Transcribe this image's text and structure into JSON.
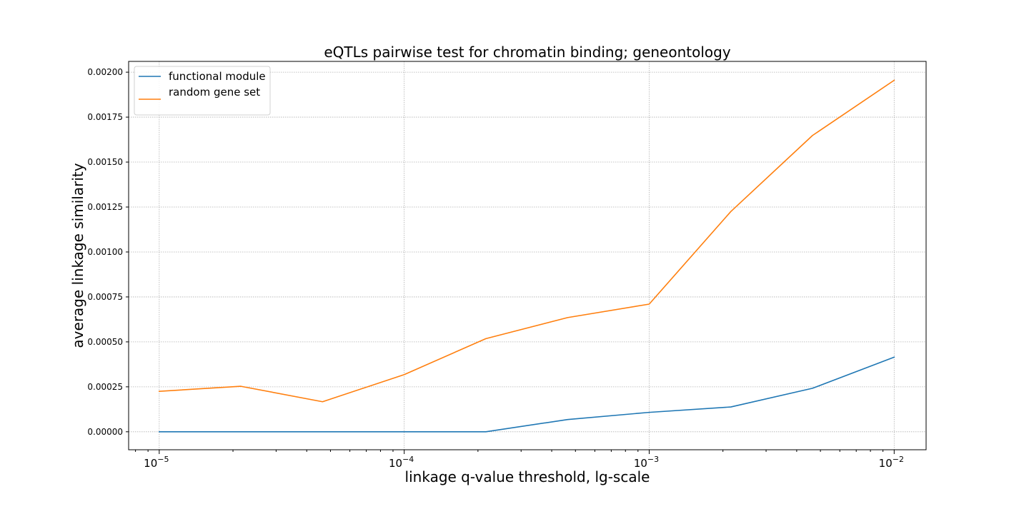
{
  "chart_data": {
    "type": "line",
    "title": "eQTLs pairwise test for chromatin binding; geneontology",
    "xlabel": "linkage q-value threshold, lg-scale",
    "ylabel": "average linkage similarity",
    "x_scale": "log10",
    "xlim": [
      7.5e-06,
      0.0135
    ],
    "ylim": [
      -0.0001,
      0.00206
    ],
    "grid": true,
    "legend_position": "top-left",
    "x_ticks": [
      {
        "value": 1e-05,
        "base": "10",
        "exponent": "−5"
      },
      {
        "value": 0.0001,
        "base": "10",
        "exponent": "−4"
      },
      {
        "value": 0.001,
        "base": "10",
        "exponent": "−3"
      },
      {
        "value": 0.01,
        "base": "10",
        "exponent": "−2"
      }
    ],
    "y_ticks": [
      {
        "value": 0.0,
        "label": "0.00000"
      },
      {
        "value": 0.00025,
        "label": "0.00025"
      },
      {
        "value": 0.0005,
        "label": "0.00050"
      },
      {
        "value": 0.00075,
        "label": "0.00075"
      },
      {
        "value": 0.001,
        "label": "0.00100"
      },
      {
        "value": 0.00125,
        "label": "0.00125"
      },
      {
        "value": 0.0015,
        "label": "0.00150"
      },
      {
        "value": 0.00175,
        "label": "0.00175"
      },
      {
        "value": 0.002,
        "label": "0.00200"
      }
    ],
    "x": [
      1e-05,
      2.154e-05,
      4.642e-05,
      0.0001,
      0.0002154,
      0.0004642,
      0.001,
      0.002154,
      0.004642,
      0.01
    ],
    "series": [
      {
        "name": "functional module",
        "color": "#1f77b4",
        "values": [
          0.0,
          0.0,
          0.0,
          0.0,
          0.0,
          6.8e-05,
          0.000108,
          0.000138,
          0.000242,
          0.000415
        ]
      },
      {
        "name": "random gene set",
        "color": "#ff7f0e",
        "values": [
          0.000225,
          0.000253,
          0.000167,
          0.000318,
          0.000518,
          0.000635,
          0.00071,
          0.001225,
          0.001648,
          0.001955
        ]
      }
    ]
  }
}
